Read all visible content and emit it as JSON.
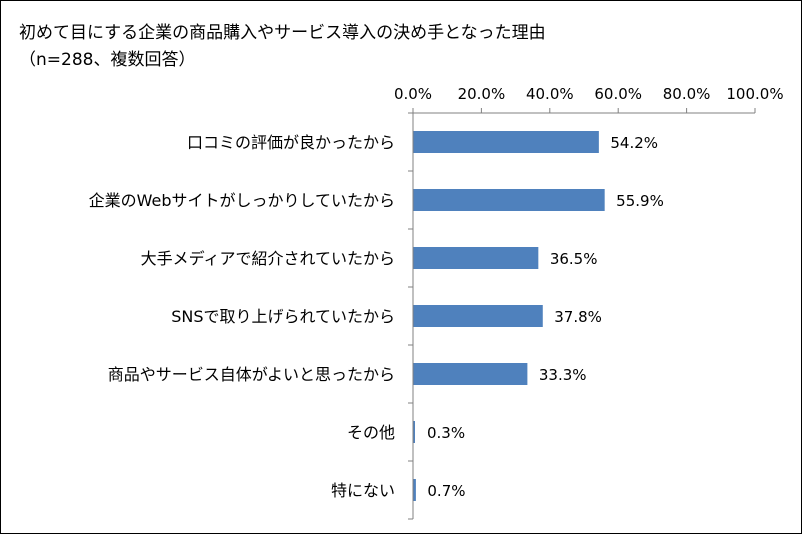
{
  "chart_data": {
    "type": "bar",
    "orientation": "horizontal",
    "title": "初めて目にする企業の商品購入やサービス導入の決め手となった理由",
    "subtitle": "（n=288、複数回答）",
    "categories": [
      "口コミの評価が良かったから",
      "企業のWebサイトがしっかりしていたから",
      "大手メディアで紹介されていたから",
      "SNSで取り上げられていたから",
      "商品やサービス自体がよいと思ったから",
      "その他",
      "特にない"
    ],
    "values": [
      54.2,
      55.9,
      36.5,
      37.8,
      33.3,
      0.3,
      0.7
    ],
    "value_labels": [
      "54.2%",
      "55.9%",
      "36.5%",
      "37.8%",
      "33.3%",
      "0.3%",
      "0.7%"
    ],
    "xlim": [
      0,
      100
    ],
    "x_ticks": [
      0,
      20,
      40,
      60,
      80,
      100
    ],
    "x_tick_labels": [
      "0.0%",
      "20.0%",
      "40.0%",
      "60.0%",
      "80.0%",
      "100.0%"
    ],
    "x_axis_position": "top",
    "grid": false,
    "legend": "none",
    "bar_color": "#4F81BD"
  }
}
